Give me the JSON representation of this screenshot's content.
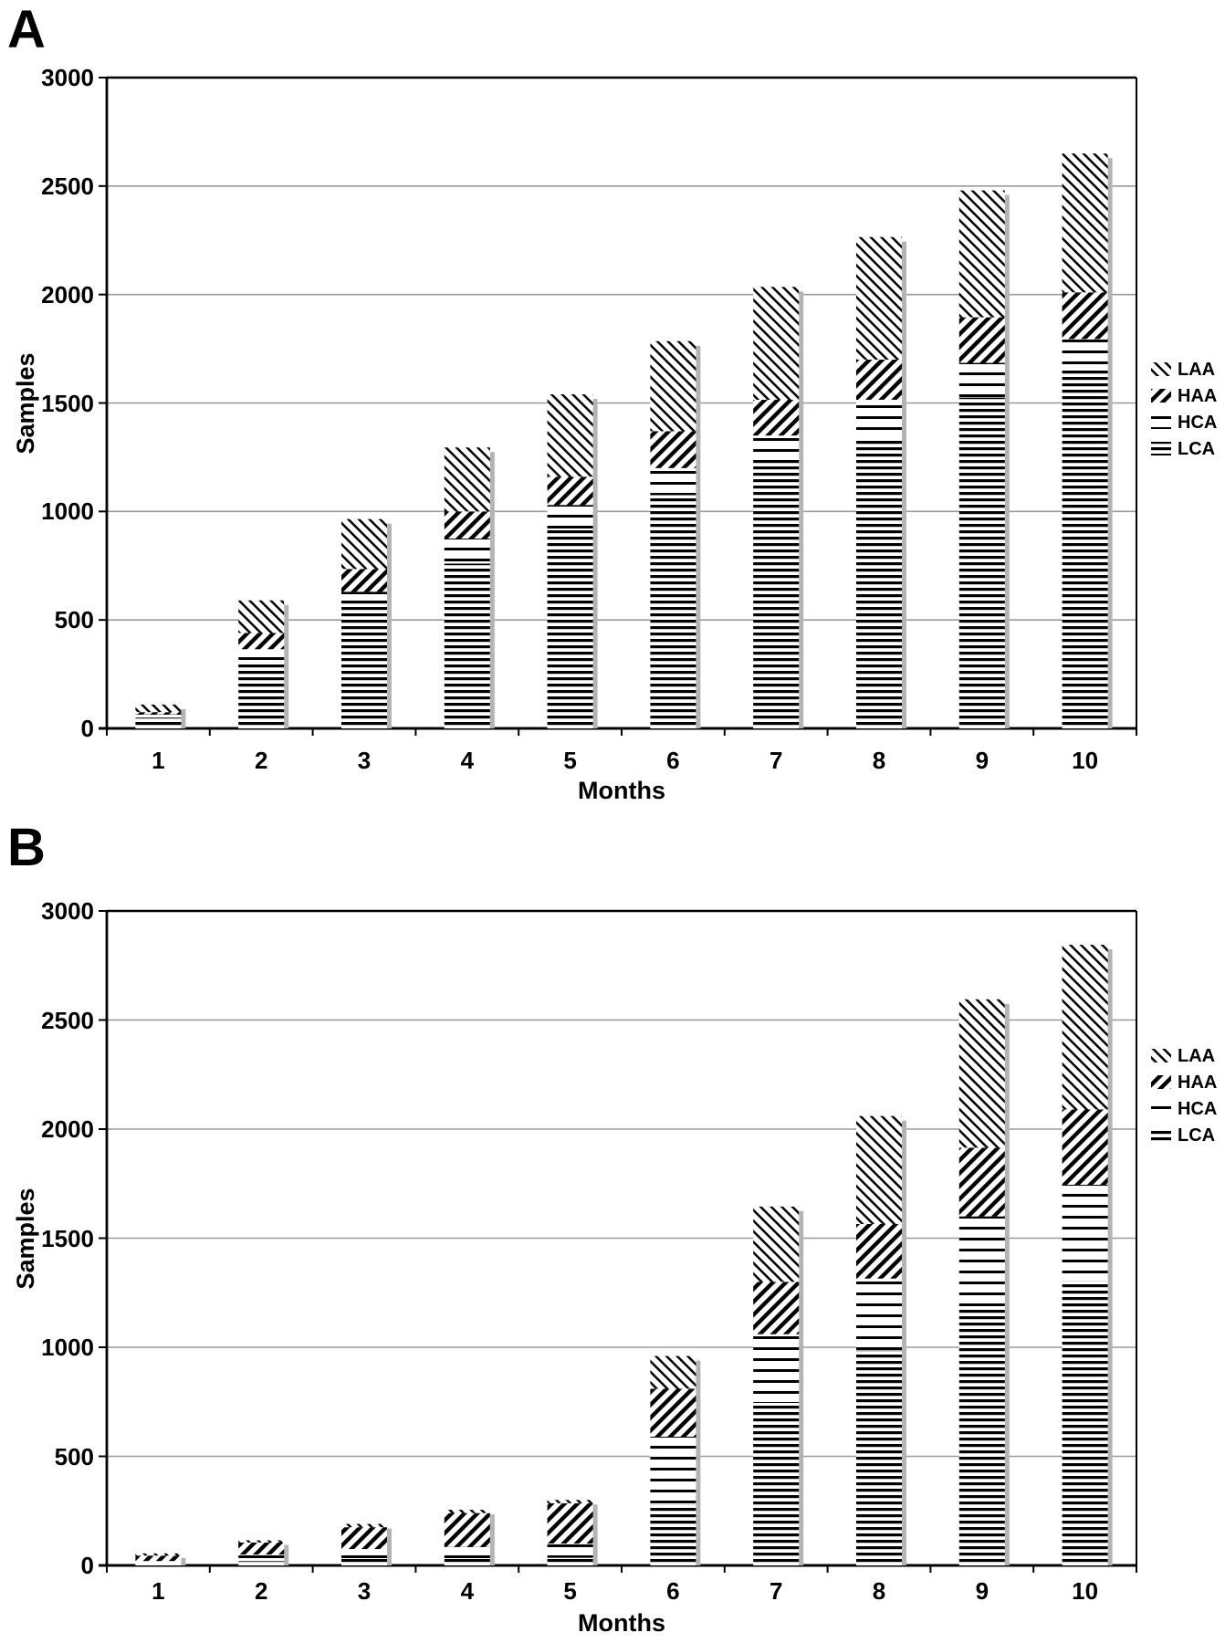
{
  "figure": {
    "background": "#ffffff",
    "colors": {
      "ink": "#000000",
      "grid": "#9a9a9a",
      "bar_shadow": "#b4b4b4",
      "bar_fill": "#ffffff"
    }
  },
  "chart_data": [
    {
      "type": "bar",
      "stacked": true,
      "panel_label": "A",
      "title": "",
      "xlabel": "Months",
      "ylabel": "Samples",
      "ylim": [
        0,
        3000
      ],
      "ytick_step": 500,
      "grid": true,
      "legend_position": "right",
      "categories": [
        "1",
        "2",
        "3",
        "4",
        "5",
        "6",
        "7",
        "8",
        "9",
        "10"
      ],
      "series": [
        {
          "name": "LCA",
          "pattern": "dense-horizontal-lines",
          "values": [
            50,
            310,
            590,
            760,
            920,
            1075,
            1245,
            1340,
            1525,
            1655
          ]
        },
        {
          "name": "HCA",
          "pattern": "sparse-horizontal-lines",
          "values": [
            15,
            55,
            40,
            115,
            110,
            125,
            105,
            175,
            160,
            140
          ]
        },
        {
          "name": "HAA",
          "pattern": "thick-diagonal-slash",
          "values": [
            10,
            75,
            105,
            125,
            130,
            170,
            165,
            185,
            210,
            215
          ]
        },
        {
          "name": "LAA",
          "pattern": "thin-diagonal-backslash",
          "values": [
            35,
            150,
            230,
            295,
            380,
            415,
            520,
            565,
            585,
            640
          ]
        }
      ],
      "stack_totals": [
        110,
        590,
        965,
        1295,
        1540,
        1785,
        2035,
        2265,
        2480,
        2650
      ],
      "legend": [
        {
          "label": "LAA",
          "pattern": "thin-diagonal-backslash"
        },
        {
          "label": "HAA",
          "pattern": "thick-diagonal-slash"
        },
        {
          "label": "HCA",
          "pattern": "sparse-horizontal-lines"
        },
        {
          "label": "LCA",
          "pattern": "dense-horizontal-lines"
        }
      ]
    },
    {
      "type": "bar",
      "stacked": true,
      "panel_label": "B",
      "title": "",
      "xlabel": "Months",
      "ylabel": "Samples",
      "ylim": [
        0,
        3000
      ],
      "ytick_step": 500,
      "grid": true,
      "legend_position": "right",
      "categories": [
        "1",
        "2",
        "3",
        "4",
        "5",
        "6",
        "7",
        "8",
        "9",
        "10"
      ],
      "series": [
        {
          "name": "LCA",
          "pattern": "dense-horizontal-lines",
          "values": [
            10,
            20,
            30,
            30,
            35,
            280,
            745,
            985,
            1185,
            1305
          ]
        },
        {
          "name": "HCA",
          "pattern": "sparse-horizontal-lines",
          "values": [
            10,
            30,
            45,
            55,
            65,
            310,
            315,
            330,
            415,
            440
          ]
        },
        {
          "name": "HAA",
          "pattern": "thick-diagonal-slash",
          "values": [
            25,
            55,
            100,
            155,
            185,
            220,
            240,
            250,
            315,
            345
          ]
        },
        {
          "name": "LAA",
          "pattern": "thin-diagonal-backslash",
          "values": [
            10,
            10,
            15,
            15,
            15,
            150,
            345,
            495,
            680,
            755
          ]
        }
      ],
      "stack_totals": [
        55,
        115,
        190,
        255,
        300,
        960,
        1645,
        2060,
        2595,
        2845
      ],
      "legend": [
        {
          "label": "LAA",
          "pattern": "thin-diagonal-backslash"
        },
        {
          "label": "HAA",
          "pattern": "thick-diagonal-slash"
        },
        {
          "label": "HCA",
          "pattern": "sparse-horizontal-lines"
        },
        {
          "label": "LCA",
          "pattern": "dense-horizontal-lines"
        }
      ]
    }
  ]
}
